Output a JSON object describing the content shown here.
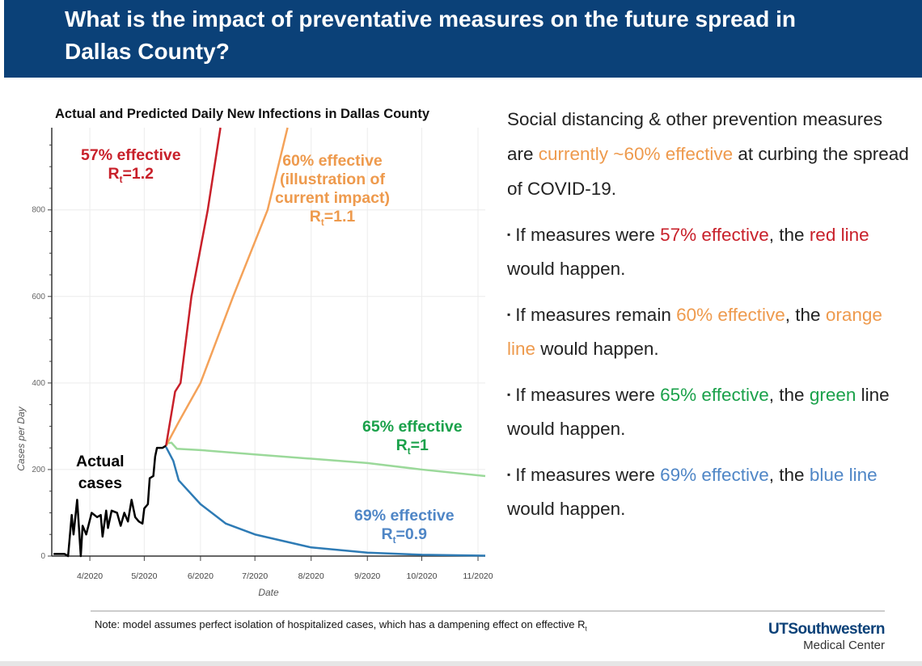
{
  "header": {
    "title": "What is the impact of preventative measures on the future spread in Dallas County?"
  },
  "colors": {
    "header": "#0b4178",
    "actual": "#000000",
    "red": "#c8202a",
    "orange": "#f4a259",
    "green": "#9bd99a",
    "blue": "#2e7bb5",
    "green_text": "#1aa14a",
    "blue_text": "#4f86c6",
    "orange_text": "#ee9a4d"
  },
  "chart_data": {
    "type": "line",
    "title": "Actual and Predicted Daily New Infections in Dallas County",
    "xlabel": "Date",
    "ylabel": "Cases per Day",
    "xlim": [
      "2020-03-11",
      "2020-11-05"
    ],
    "ylim": [
      0,
      990
    ],
    "yticks": [
      0,
      200,
      400,
      600,
      800
    ],
    "xticks": [
      {
        "date": "2020-04-01",
        "label": "4/2020"
      },
      {
        "date": "2020-05-01",
        "label": "5/2020"
      },
      {
        "date": "2020-06-01",
        "label": "6/2020"
      },
      {
        "date": "2020-07-01",
        "label": "7/2020"
      },
      {
        "date": "2020-08-01",
        "label": "8/2020"
      },
      {
        "date": "2020-09-01",
        "label": "9/2020"
      },
      {
        "date": "2020-10-01",
        "label": "10/2020"
      },
      {
        "date": "2020-11-01",
        "label": "11/2020"
      }
    ],
    "grid": true,
    "series": [
      {
        "name": "Actual cases",
        "color": "#000000",
        "points": [
          [
            "2020-03-12",
            5
          ],
          [
            "2020-03-15",
            5
          ],
          [
            "2020-03-18",
            5
          ],
          [
            "2020-03-20",
            0
          ],
          [
            "2020-03-22",
            95
          ],
          [
            "2020-03-23",
            50
          ],
          [
            "2020-03-25",
            130
          ],
          [
            "2020-03-27",
            0
          ],
          [
            "2020-03-28",
            70
          ],
          [
            "2020-03-30",
            50
          ],
          [
            "2020-04-02",
            100
          ],
          [
            "2020-04-05",
            90
          ],
          [
            "2020-04-07",
            95
          ],
          [
            "2020-04-08",
            45
          ],
          [
            "2020-04-10",
            105
          ],
          [
            "2020-04-11",
            65
          ],
          [
            "2020-04-13",
            105
          ],
          [
            "2020-04-16",
            100
          ],
          [
            "2020-04-18",
            70
          ],
          [
            "2020-04-20",
            100
          ],
          [
            "2020-04-22",
            80
          ],
          [
            "2020-04-24",
            130
          ],
          [
            "2020-04-26",
            90
          ],
          [
            "2020-04-28",
            80
          ],
          [
            "2020-04-30",
            75
          ],
          [
            "2020-05-01",
            110
          ],
          [
            "2020-05-03",
            120
          ],
          [
            "2020-05-04",
            180
          ],
          [
            "2020-05-06",
            185
          ],
          [
            "2020-05-07",
            230
          ],
          [
            "2020-05-08",
            250
          ],
          [
            "2020-05-11",
            250
          ],
          [
            "2020-05-13",
            255
          ]
        ]
      },
      {
        "name": "57% effective R_t=1.2",
        "color": "#c8202a",
        "points": [
          [
            "2020-05-13",
            255
          ],
          [
            "2020-05-18",
            380
          ],
          [
            "2020-05-21",
            400
          ],
          [
            "2020-05-27",
            600
          ],
          [
            "2020-06-05",
            800
          ],
          [
            "2020-06-12",
            990
          ]
        ]
      },
      {
        "name": "60% effective (illustration of current impact) R_t=1.1",
        "color": "#f4a259",
        "points": [
          [
            "2020-05-13",
            255
          ],
          [
            "2020-05-20",
            310
          ],
          [
            "2020-06-01",
            400
          ],
          [
            "2020-06-19",
            600
          ],
          [
            "2020-07-08",
            800
          ],
          [
            "2020-07-19",
            990
          ]
        ]
      },
      {
        "name": "65% effective R_t=1",
        "color": "#9bd99a",
        "points": [
          [
            "2020-05-13",
            260
          ],
          [
            "2020-05-16",
            262
          ],
          [
            "2020-05-19",
            248
          ],
          [
            "2020-06-01",
            245
          ],
          [
            "2020-07-01",
            235
          ],
          [
            "2020-08-01",
            225
          ],
          [
            "2020-09-01",
            215
          ],
          [
            "2020-10-01",
            200
          ],
          [
            "2020-11-05",
            185
          ]
        ]
      },
      {
        "name": "69% effective R_t=0.9",
        "color": "#2e7bb5",
        "points": [
          [
            "2020-05-13",
            252
          ],
          [
            "2020-05-17",
            220
          ],
          [
            "2020-05-20",
            175
          ],
          [
            "2020-06-01",
            120
          ],
          [
            "2020-06-15",
            75
          ],
          [
            "2020-07-01",
            50
          ],
          [
            "2020-08-01",
            20
          ],
          [
            "2020-09-01",
            8
          ],
          [
            "2020-10-01",
            3
          ],
          [
            "2020-11-05",
            1
          ]
        ]
      }
    ],
    "annotations": {
      "red": {
        "line1": "57% effective",
        "r": "R",
        "sub": "t",
        "val": "=1.2"
      },
      "orange": {
        "line1": "60% effective",
        "line2": "(illustration of",
        "line3": "current impact)",
        "r": "R",
        "sub": "t",
        "val": "=1.1"
      },
      "green": {
        "line1": "65% effective",
        "r": "R",
        "sub": "t",
        "val": "=1"
      },
      "blue": {
        "line1": "69% effective",
        "r": "R",
        "sub": "t",
        "val": "=0.9"
      },
      "actual": {
        "line1": "Actual",
        "line2": "cases"
      }
    }
  },
  "text": {
    "intro": [
      "Social distancing & other prevention measures are ",
      "currently ~60% effective",
      " at curbing the spread of COVID-19."
    ],
    "b1": [
      "If measures were ",
      "57% effective",
      ", the ",
      "red line",
      " would happen."
    ],
    "b2": [
      "If measures remain ",
      "60% effective",
      ", the ",
      "orange line",
      " would happen."
    ],
    "b3": [
      "If measures were ",
      "65% effective",
      ", the ",
      "green",
      " line would happen."
    ],
    "b4": [
      "If measures were ",
      "69% effective",
      ", the ",
      "blue line",
      " would happen."
    ],
    "bullet": "▪"
  },
  "footer": {
    "note": "Note: model assumes perfect isolation of hospitalized cases, which has a dampening effect on effective R",
    "note_sub": "t",
    "logo_line1": "UTSouthwestern",
    "logo_line2": "Medical Center"
  }
}
